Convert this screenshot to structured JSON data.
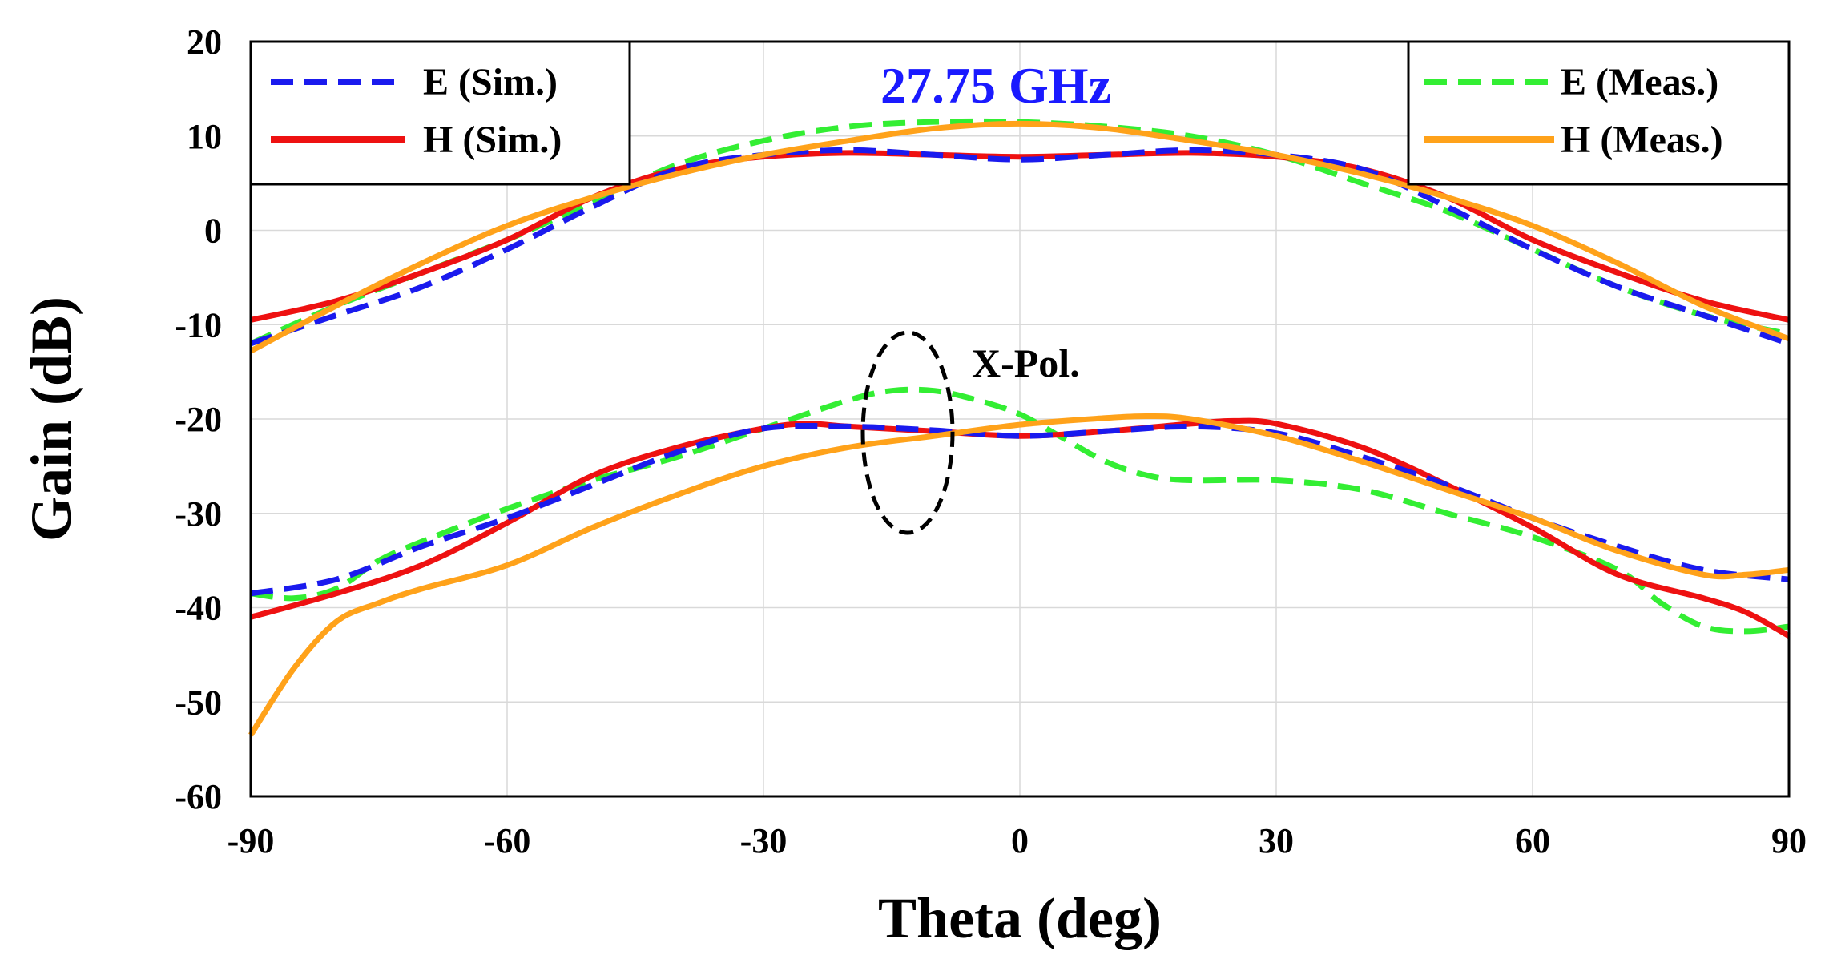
{
  "chart_data": {
    "type": "line",
    "title": "27.75 GHz",
    "title_color": "#1a1aff",
    "xlabel": "Theta (deg)",
    "ylabel": "Gain (dB)",
    "xlim": [
      -90,
      90
    ],
    "ylim": [
      -60,
      20
    ],
    "xticks": [
      -90,
      -60,
      -30,
      0,
      30,
      60,
      90
    ],
    "yticks": [
      20,
      10,
      0,
      -10,
      -20,
      -30,
      -40,
      -50,
      -60
    ],
    "grid": true,
    "annotation": "X-Pol.",
    "legend_left": [
      {
        "label": "E (Sim.)",
        "series": "E (Sim.)"
      },
      {
        "label": "H (Sim.)",
        "series": "H (Sim.)"
      }
    ],
    "legend_right": [
      {
        "label": "E (Meas.)",
        "series": "E (Meas.)"
      },
      {
        "label": "H (Meas.)",
        "series": "H (Meas.)"
      }
    ],
    "series": [
      {
        "name": "E (Meas.)",
        "group": "co-pol",
        "color": "#33ee33",
        "dash": "dashed",
        "x": [
          -90,
          -80,
          -70,
          -60,
          -50,
          -40,
          -30,
          -20,
          -10,
          0,
          10,
          20,
          30,
          40,
          50,
          60,
          70,
          80,
          90
        ],
        "y": [
          -12,
          -8,
          -4.5,
          -1,
          3,
          7,
          9.5,
          11,
          11.5,
          11.5,
          11,
          10,
          8,
          5,
          2,
          -2,
          -6,
          -9,
          -11
        ]
      },
      {
        "name": "E (Meas.)",
        "group": "x-pol",
        "color": "#33ee33",
        "dash": "dashed",
        "x": [
          -90,
          -85,
          -80,
          -75,
          -70,
          -60,
          -50,
          -40,
          -30,
          -20,
          -15,
          -10,
          -5,
          0,
          5,
          10,
          15,
          20,
          30,
          40,
          50,
          60,
          70,
          75,
          80,
          85,
          90
        ],
        "y": [
          -38.5,
          -39,
          -38,
          -35,
          -33,
          -29.5,
          -26.5,
          -24,
          -21,
          -18,
          -17,
          -17,
          -18,
          -19.5,
          -22,
          -24.5,
          -26,
          -26.5,
          -26.5,
          -27.5,
          -30,
          -32.5,
          -36,
          -39.5,
          -42,
          -42.5,
          -42
        ]
      },
      {
        "name": "H (Sim.)",
        "group": "co-pol",
        "color": "#ee1111",
        "dash": "solid",
        "x": [
          -90,
          -80,
          -70,
          -60,
          -50,
          -40,
          -30,
          -20,
          -10,
          0,
          10,
          20,
          30,
          40,
          50,
          60,
          70,
          80,
          90
        ],
        "y": [
          -9.5,
          -7.5,
          -4.5,
          -1,
          3.5,
          6.5,
          7.8,
          8.2,
          8,
          7.8,
          8,
          8.2,
          7.8,
          6.5,
          3.5,
          -1,
          -4.5,
          -7.5,
          -9.5
        ]
      },
      {
        "name": "H (Sim.)",
        "group": "x-pol",
        "color": "#ee1111",
        "dash": "solid",
        "x": [
          -90,
          -80,
          -70,
          -60,
          -50,
          -40,
          -30,
          -25,
          -20,
          -10,
          0,
          10,
          20,
          25,
          30,
          40,
          50,
          60,
          70,
          80,
          85,
          90
        ],
        "y": [
          -41,
          -38.5,
          -35.5,
          -31,
          -26,
          -23,
          -21,
          -20.5,
          -20.8,
          -21.3,
          -21.8,
          -21.3,
          -20.5,
          -20.2,
          -20.5,
          -23,
          -27,
          -31.5,
          -36.5,
          -39,
          -40.5,
          -43
        ]
      },
      {
        "name": "E (Sim.)",
        "group": "co-pol",
        "color": "#1a1aee",
        "dash": "dashed",
        "x": [
          -90,
          -80,
          -70,
          -60,
          -50,
          -40,
          -30,
          -20,
          -10,
          0,
          10,
          20,
          30,
          40,
          50,
          60,
          70,
          80,
          90
        ],
        "y": [
          -12,
          -9,
          -6,
          -2,
          2.5,
          6.5,
          8,
          8.5,
          8,
          7.5,
          8,
          8.5,
          8,
          6.5,
          2.5,
          -2,
          -6,
          -9,
          -12
        ]
      },
      {
        "name": "E (Sim.)",
        "group": "x-pol",
        "color": "#1a1aee",
        "dash": "dashed",
        "x": [
          -90,
          -80,
          -70,
          -60,
          -50,
          -40,
          -30,
          -20,
          -10,
          0,
          10,
          20,
          30,
          40,
          50,
          60,
          70,
          80,
          90
        ],
        "y": [
          -38.5,
          -37,
          -33.5,
          -30.5,
          -27,
          -23.5,
          -21,
          -20.8,
          -21.2,
          -21.8,
          -21.3,
          -20.8,
          -21.5,
          -24,
          -27,
          -30.5,
          -33.5,
          -36,
          -37
        ]
      },
      {
        "name": "H (Meas.)",
        "group": "co-pol",
        "color": "#ffa21a",
        "dash": "solid",
        "x": [
          -90,
          -80,
          -70,
          -60,
          -50,
          -40,
          -30,
          -20,
          -10,
          0,
          10,
          20,
          30,
          40,
          50,
          60,
          70,
          80,
          90
        ],
        "y": [
          -12.8,
          -8,
          -3.5,
          0.5,
          3.5,
          6,
          8,
          9.5,
          10.8,
          11.3,
          10.8,
          9.5,
          8,
          6,
          3.5,
          0.5,
          -3.5,
          -8,
          -11.5
        ]
      },
      {
        "name": "H (Meas.)",
        "group": "x-pol",
        "color": "#ffa21a",
        "dash": "solid",
        "x": [
          -90,
          -85,
          -80,
          -75,
          -70,
          -60,
          -50,
          -40,
          -30,
          -20,
          -10,
          0,
          10,
          15,
          20,
          30,
          40,
          50,
          60,
          70,
          80,
          85,
          90
        ],
        "y": [
          -53.5,
          -46.5,
          -41.5,
          -39.5,
          -38,
          -35.5,
          -31.5,
          -28,
          -25,
          -23,
          -21.8,
          -20.6,
          -19.9,
          -19.7,
          -20,
          -21.8,
          -24.5,
          -27.5,
          -30.5,
          -34,
          -36.5,
          -36.5,
          -36
        ]
      }
    ]
  }
}
